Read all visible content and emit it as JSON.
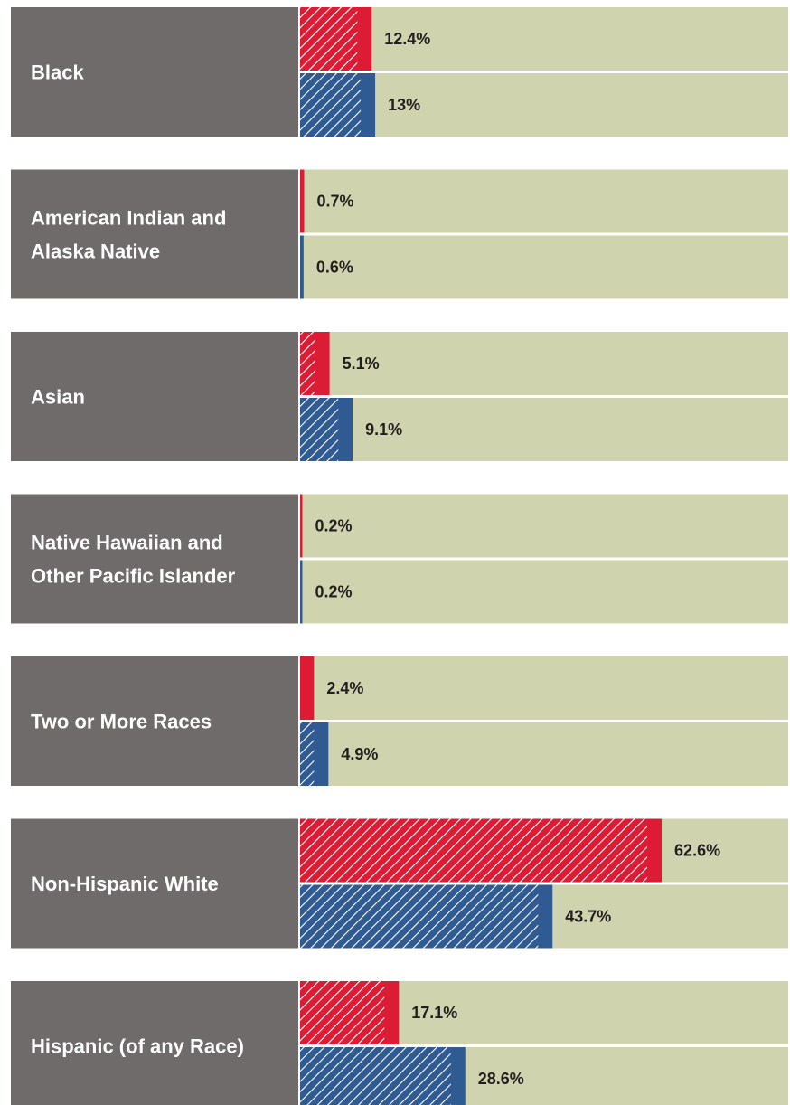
{
  "colors": {
    "label_panel": "#706b6b",
    "track": "#d0d4ae",
    "series_1": "#dc1c35",
    "series_2": "#2f5b92",
    "hatch": "#ffffff",
    "value_text": "#231f20"
  },
  "chart_data": {
    "type": "bar",
    "orientation": "horizontal",
    "unit": "%",
    "xlim": [
      0,
      84.5
    ],
    "categories": [
      [
        "Black"
      ],
      [
        "American Indian and",
        "Alaska Native"
      ],
      [
        "Asian"
      ],
      [
        "Native Hawaiian and",
        "Other Pacific Islander"
      ],
      [
        "Two or More Races"
      ],
      [
        "Non-Hispanic White"
      ],
      [
        "Hispanic (of any Race)"
      ]
    ],
    "series": [
      {
        "color": "#dc1c35",
        "values": [
          12.4,
          0.7,
          5.1,
          0.2,
          2.4,
          62.6,
          17.1
        ],
        "labels": [
          "12.4%",
          "0.7%",
          "5.1%",
          "0.2%",
          "2.4%",
          "62.6%",
          "17.1%"
        ]
      },
      {
        "color": "#2f5b92",
        "values": [
          13,
          0.6,
          9.1,
          0.2,
          4.9,
          43.7,
          28.6
        ],
        "labels": [
          "13%",
          "0.6%",
          "9.1%",
          "0.2%",
          "4.9%",
          "43.7%",
          "28.6%"
        ]
      }
    ],
    "legend": "none",
    "grid": false
  }
}
